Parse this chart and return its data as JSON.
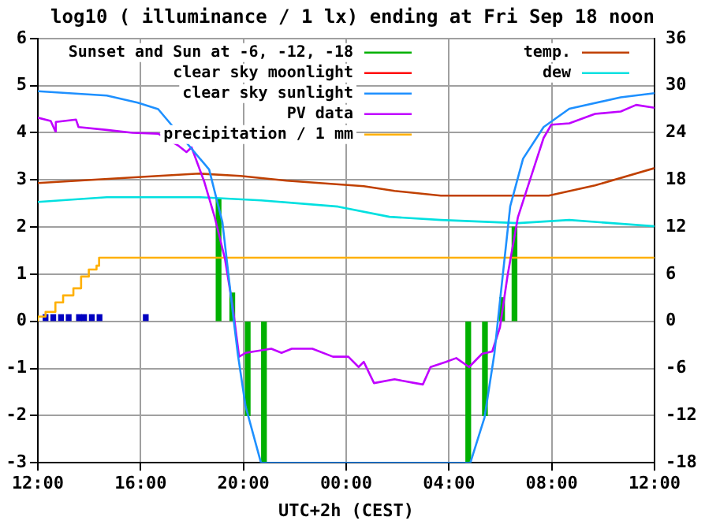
{
  "chart_data": {
    "type": "line",
    "title": "log10 ( illuminance / 1 lx) ending at Fri Sep 18 noon",
    "xlabel": "UTC+2h (CEST)",
    "xlim": [
      "--09-17T12:00",
      "--09-18T12:00"
    ],
    "xticks": [
      {
        "value": "--09-17T12:00",
        "label": "12:00"
      },
      {
        "value": "--09-17T16:00",
        "label": "16:00"
      },
      {
        "value": "--09-17T20:00",
        "label": "20:00"
      },
      {
        "value": "--09-18T00:00",
        "label": "00:00"
      },
      {
        "value": "--09-18T04:00",
        "label": "04:00"
      },
      {
        "value": "--09-18T08:00",
        "label": "08:00"
      },
      {
        "value": "--09-18T12:00",
        "label": "12:00"
      }
    ],
    "ylim": [
      -3,
      6
    ],
    "yticks": [
      -3,
      -2,
      -1,
      0,
      1,
      2,
      3,
      4,
      5,
      6
    ],
    "y2lim": [
      -18,
      36
    ],
    "y2ticks": [
      -18,
      -12,
      -6,
      0,
      6,
      12,
      18,
      24,
      30,
      36
    ],
    "grid": true,
    "legend": "top",
    "marker": "none",
    "line_style": "solid",
    "series": [
      {
        "name": "Sunset and Sun at -6, -12, -18",
        "type": "bar",
        "color": "#00b000",
        "x": [
          "--09-17T19:02",
          "--09-17T19:34",
          "--09-17T20:10",
          "--09-17T20:48",
          "--09-18T04:45",
          "--09-18T05:24",
          "--09-18T06:04",
          "--09-18T06:33"
        ],
        "values": [
          2.6,
          0.6,
          -2,
          -3,
          -3,
          -2,
          0.5,
          2.0
        ]
      },
      {
        "name": "clear sky moonlight",
        "color": "#ff0000"
      },
      {
        "name": "clear sky sunlight",
        "color": "#1e90ff",
        "x": [
          "--09-17T12:00",
          "--09-17T14:41",
          "--09-17T15:53",
          "--09-17T16:41",
          "--09-17T18:40",
          "--09-17T19:11",
          "--09-17T19:35",
          "--09-17T19:47",
          "--09-17T20:05",
          "--09-17T20:41",
          "--09-18T04:50",
          "--09-18T05:23",
          "--09-18T05:46",
          "--09-18T05:59",
          "--09-18T06:23",
          "--09-18T06:53",
          "--09-18T07:41",
          "--09-18T08:41",
          "--09-18T10:41",
          "--09-18T12:00"
        ],
        "values": [
          4.88,
          4.79,
          4.64,
          4.5,
          3.22,
          2.1,
          0.2,
          -0.7,
          -1.8,
          -3,
          -3,
          -2.04,
          -0.69,
          0.42,
          2.44,
          3.45,
          4.12,
          4.51,
          4.75,
          4.84
        ]
      },
      {
        "name": "PV data",
        "color": "#c000ff",
        "x": [
          "--09-17T12:00",
          "--09-17T12:30",
          "--09-17T12:41",
          "--09-17T12:42",
          "--09-17T13:29",
          "--09-17T13:35",
          "--09-17T14:41",
          "--09-17T15:41",
          "--09-17T16:41",
          "--09-17T17:29",
          "--09-17T17:47",
          "--09-17T17:59",
          "--09-17T18:29",
          "--09-17T18:53",
          "--09-17T19:17",
          "--09-17T19:35",
          "--09-17T19:50",
          "--09-17T20:05",
          "--09-17T21:05",
          "--09-17T21:29",
          "--09-17T21:53",
          "--09-17T22:41",
          "--09-17T23:29",
          "--09-18T00:05",
          "--09-18T00:29",
          "--09-18T00:41",
          "--09-18T01:05",
          "--09-18T01:53",
          "--09-18T02:41",
          "--09-18T02:59",
          "--09-18T03:17",
          "--09-18T03:53",
          "--09-18T04:17",
          "--09-18T04:47",
          "--09-18T05:17",
          "--09-18T05:41",
          "--09-18T05:59",
          "--09-18T06:17",
          "--09-18T06:41",
          "--09-18T07:17",
          "--09-18T07:41",
          "--09-18T07:59",
          "--09-18T08:41",
          "--09-18T09:41",
          "--09-18T10:41",
          "--09-18T11:17",
          "--09-18T12:00"
        ],
        "values": [
          4.32,
          4.25,
          4.03,
          4.23,
          4.28,
          4.12,
          4.06,
          4.0,
          3.98,
          3.72,
          3.59,
          3.69,
          2.95,
          2.21,
          1.32,
          0.31,
          -0.75,
          -0.67,
          -0.58,
          -0.67,
          -0.58,
          -0.58,
          -0.75,
          -0.75,
          -0.97,
          -0.86,
          -1.31,
          -1.23,
          -1.31,
          -1.34,
          -0.97,
          -0.86,
          -0.78,
          -0.97,
          -0.69,
          -0.64,
          -0.13,
          0.98,
          2.21,
          3.22,
          3.89,
          4.17,
          4.2,
          4.4,
          4.45,
          4.59,
          4.53
        ]
      },
      {
        "name": "precipitation / 1 mm",
        "type": "step",
        "color": "#ffb000",
        "x": [
          "--09-17T12:00",
          "--09-17T12:18",
          "--09-17T12:41",
          "--09-17T12:59",
          "--09-17T13:23",
          "--09-17T13:41",
          "--09-17T13:59",
          "--09-17T14:17",
          "--09-17T14:23",
          "--09-17T16:12",
          "--09-18T12:00"
        ],
        "values": [
          0,
          0.1,
          0.2,
          0.4,
          0.55,
          0.7,
          0.95,
          1.1,
          1.18,
          1.35,
          1.35
        ]
      },
      {
        "type": "bar",
        "color": "#0000c0",
        "x": [
          "--09-17T12:18",
          "--09-17T12:36",
          "--09-17T12:54",
          "--09-17T13:12",
          "--09-17T13:36",
          "--09-17T13:48",
          "--09-17T14:06",
          "--09-17T14:24",
          "--09-17T16:12"
        ],
        "values": [
          0.14,
          0.14,
          0.14,
          0.14,
          0.14,
          0.14,
          0.14,
          0.14,
          0.14
        ]
      },
      {
        "name": "temp.",
        "axis": "y2",
        "color": "#c04000",
        "x": [
          "--09-17T12:00",
          "--09-17T16:41",
          "--09-17T18:17",
          "--09-17T19:53",
          "--09-17T21:41",
          "--09-18T00:41",
          "--09-18T01:53",
          "--09-18T03:41",
          "--09-18T07:53",
          "--09-18T09:41",
          "--09-18T12:00"
        ],
        "values": [
          17.6,
          18.5,
          18.8,
          18.5,
          17.9,
          17.2,
          16.6,
          16.0,
          16.0,
          17.3,
          19.5
        ]
      },
      {
        "name": "dew",
        "axis": "y2",
        "color": "#00e0e0",
        "x": [
          "--09-17T12:00",
          "--09-17T14:41",
          "--09-17T18:17",
          "--09-17T20:41",
          "--09-17T23:41",
          "--09-18T01:41",
          "--09-18T03:41",
          "--09-18T06:41",
          "--09-18T08:41",
          "--09-18T12:00"
        ],
        "values": [
          15.2,
          15.8,
          15.8,
          15.4,
          14.6,
          13.3,
          12.9,
          12.5,
          12.9,
          12.1
        ]
      }
    ]
  }
}
